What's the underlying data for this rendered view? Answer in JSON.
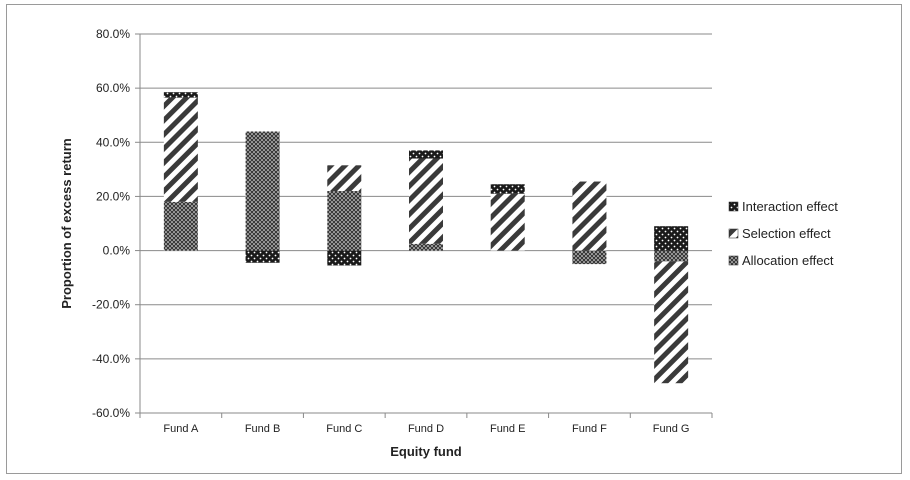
{
  "chart_data": {
    "type": "bar",
    "stacked": true,
    "title": "",
    "xlabel": "Equity fund",
    "ylabel": "Proportion of excess return",
    "ylim": [
      -60,
      80
    ],
    "ytick_step": 20,
    "ytick_labels": [
      "-60.0%",
      "-40.0%",
      "-20.0%",
      "0.0%",
      "20.0%",
      "40.0%",
      "60.0%",
      "80.0%"
    ],
    "grid": true,
    "legend_position": "right",
    "categories": [
      "Fund A",
      "Fund B",
      "Fund C",
      "Fund D",
      "Fund E",
      "Fund F",
      "Fund G"
    ],
    "series": [
      {
        "name": "Allocation effect",
        "pattern": "dots-dense",
        "values": [
          18,
          44,
          22,
          2.5,
          0,
          -5,
          -4
        ]
      },
      {
        "name": "Selection effect",
        "pattern": "diagonal-stripes",
        "values": [
          38.5,
          0,
          9.5,
          31.5,
          21,
          25.5,
          -45
        ]
      },
      {
        "name": "Interaction effect",
        "pattern": "dots-dark",
        "values": [
          2,
          -4.5,
          -5.5,
          3,
          3.5,
          0,
          9
        ]
      }
    ],
    "legend_order": [
      "Interaction effect",
      "Selection effect",
      "Allocation effect"
    ],
    "colors": {
      "bar_fill": "#3a3a3a",
      "light": "#ffffff",
      "grid": "#8a8a8a"
    }
  }
}
